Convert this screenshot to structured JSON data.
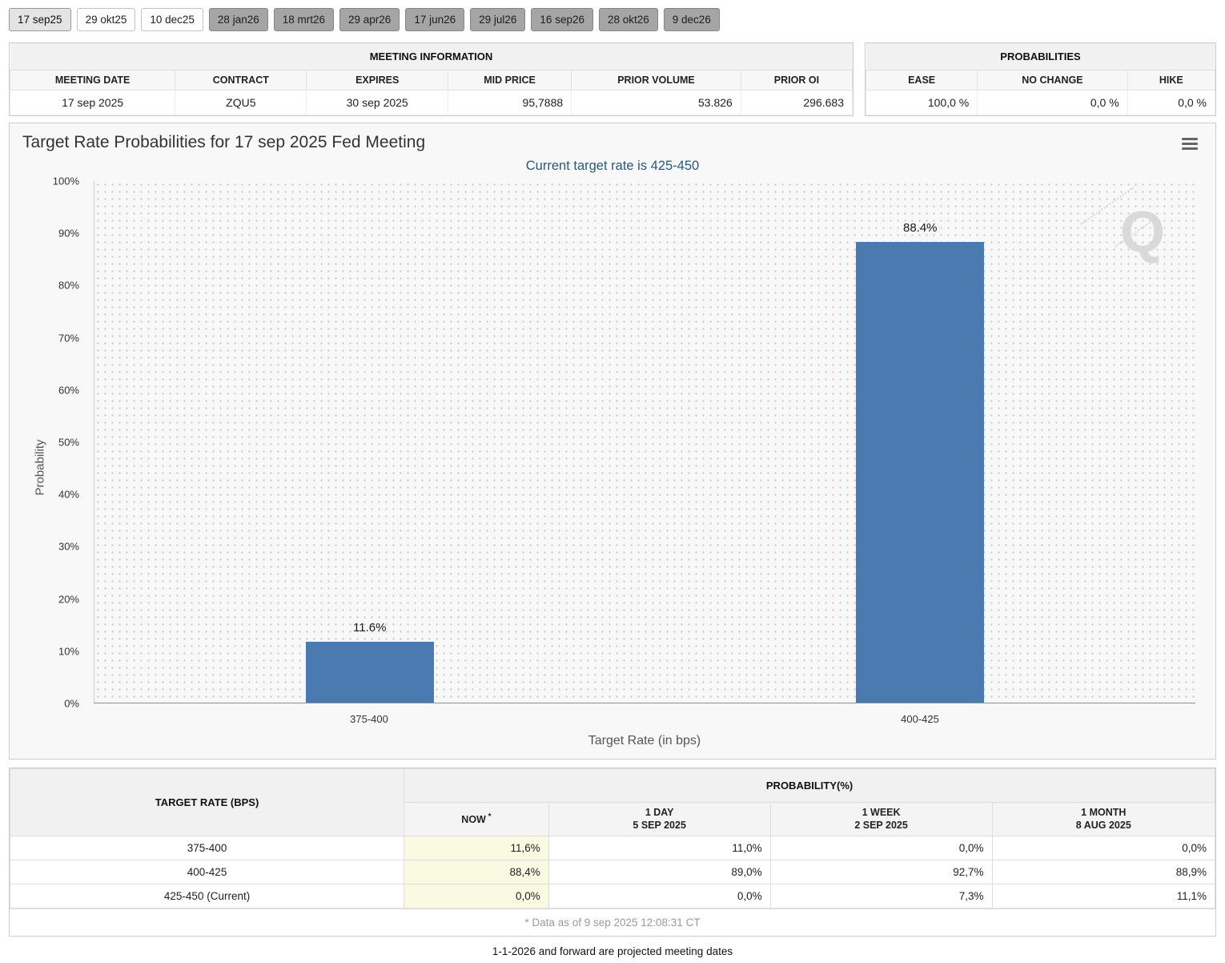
{
  "tabs": [
    {
      "label": "17 sep25",
      "style": "selected"
    },
    {
      "label": "29 okt25",
      "style": "light"
    },
    {
      "label": "10 dec25",
      "style": "light"
    },
    {
      "label": "28 jan26",
      "style": "dark"
    },
    {
      "label": "18 mrt26",
      "style": "dark"
    },
    {
      "label": "29 apr26",
      "style": "dark"
    },
    {
      "label": "17 jun26",
      "style": "dark"
    },
    {
      "label": "29 jul26",
      "style": "dark"
    },
    {
      "label": "16 sep26",
      "style": "dark"
    },
    {
      "label": "28 okt26",
      "style": "dark"
    },
    {
      "label": "9 dec26",
      "style": "dark"
    }
  ],
  "meeting_information": {
    "title": "MEETING INFORMATION",
    "columns": [
      {
        "label": "MEETING DATE",
        "align": "center"
      },
      {
        "label": "CONTRACT",
        "align": "center"
      },
      {
        "label": "EXPIRES",
        "align": "center"
      },
      {
        "label": "MID PRICE",
        "align": "right"
      },
      {
        "label": "PRIOR VOLUME",
        "align": "right"
      },
      {
        "label": "PRIOR OI",
        "align": "right"
      }
    ],
    "row": [
      "17 sep 2025",
      "ZQU5",
      "30 sep 2025",
      "95,7888",
      "53.826",
      "296.683"
    ]
  },
  "probabilities_panel": {
    "title": "PROBABILITIES",
    "columns": [
      {
        "label": "EASE",
        "align": "right"
      },
      {
        "label": "NO CHANGE",
        "align": "right"
      },
      {
        "label": "HIKE",
        "align": "right"
      }
    ],
    "row": [
      "100,0 %",
      "0,0 %",
      "0,0 %"
    ]
  },
  "chart_data": {
    "type": "bar",
    "title": "Target Rate Probabilities for 17 sep 2025 Fed Meeting",
    "subtitle": "Current target rate is 425-450",
    "categories": [
      "375-400",
      "400-425"
    ],
    "values": [
      11.6,
      88.4
    ],
    "value_labels": [
      "11.6%",
      "88.4%"
    ],
    "xlabel": "Target Rate (in bps)",
    "ylabel": "Probability",
    "ylim": [
      0,
      100
    ],
    "yticks": [
      0,
      10,
      20,
      30,
      40,
      50,
      60,
      70,
      80,
      90,
      100
    ],
    "grid": "dotted",
    "legend": "none",
    "bar_color": "#4a7ab0",
    "watermark": "Q",
    "menu_icon": "hamburger-menu-icon"
  },
  "probability_table": {
    "rate_header": "TARGET RATE (BPS)",
    "group_header": "PROBABILITY(%)",
    "col_headers": [
      {
        "line1": "NOW",
        "sup": "*",
        "line2": ""
      },
      {
        "line1": "1 DAY",
        "sup": "",
        "line2": "5 SEP 2025"
      },
      {
        "line1": "1 WEEK",
        "sup": "",
        "line2": "2 SEP 2025"
      },
      {
        "line1": "1 MONTH",
        "sup": "",
        "line2": "8 AUG 2025"
      }
    ],
    "rows": [
      {
        "rate": "375-400",
        "values": [
          "11,6%",
          "11,0%",
          "0,0%",
          "0,0%"
        ]
      },
      {
        "rate": "400-425",
        "values": [
          "88,4%",
          "89,0%",
          "92,7%",
          "88,9%"
        ]
      },
      {
        "rate": "425-450 (Current)",
        "values": [
          "0,0%",
          "0,0%",
          "7,3%",
          "11,1%"
        ]
      }
    ]
  },
  "footer": {
    "asof": "* Data as of 9 sep 2025 12:08:31 CT",
    "note": "1-1-2026 and forward are projected meeting dates"
  },
  "colors": {
    "bar": "#4a7ab0",
    "subtitle": "#2a5a7a",
    "now_highlight": "#fafae3"
  }
}
